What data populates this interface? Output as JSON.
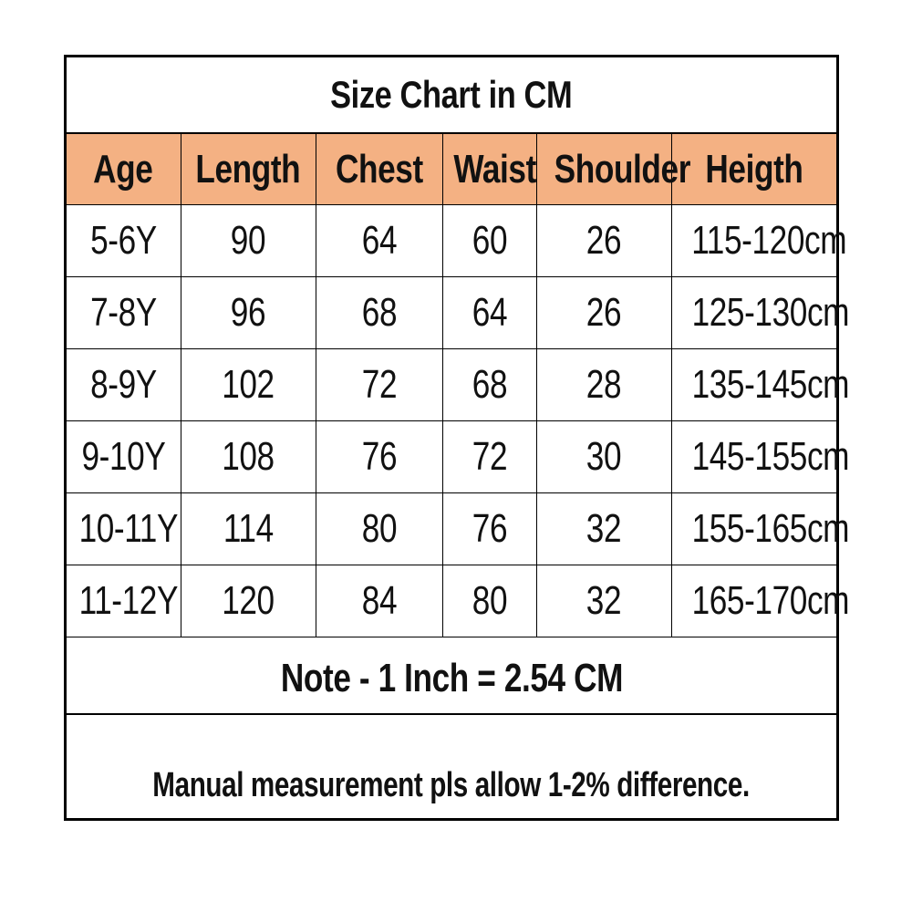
{
  "title": "Size Chart in CM",
  "table": {
    "headers": [
      "Age",
      "Length",
      "Chest",
      "Waist",
      "Shoulder",
      "Heigth"
    ],
    "rows": [
      [
        "5-6Y",
        "90",
        "64",
        "60",
        "26",
        "115-120cm"
      ],
      [
        "7-8Y",
        "96",
        "68",
        "64",
        "26",
        "125-130cm"
      ],
      [
        "8-9Y",
        "102",
        "72",
        "68",
        "28",
        "135-145cm"
      ],
      [
        "9-10Y",
        "108",
        "76",
        "72",
        "30",
        "145-155cm"
      ],
      [
        "10-11Y",
        "114",
        "80",
        "76",
        "32",
        "155-165cm"
      ],
      [
        "11-12Y",
        "120",
        "84",
        "80",
        "32",
        "165-170cm"
      ]
    ]
  },
  "note": "Note - 1 Inch = 2.54 CM",
  "manual_note": "Manual measurement pls allow 1-2% difference.",
  "colors": {
    "header_background": "#f4b183",
    "border": "#000000"
  }
}
